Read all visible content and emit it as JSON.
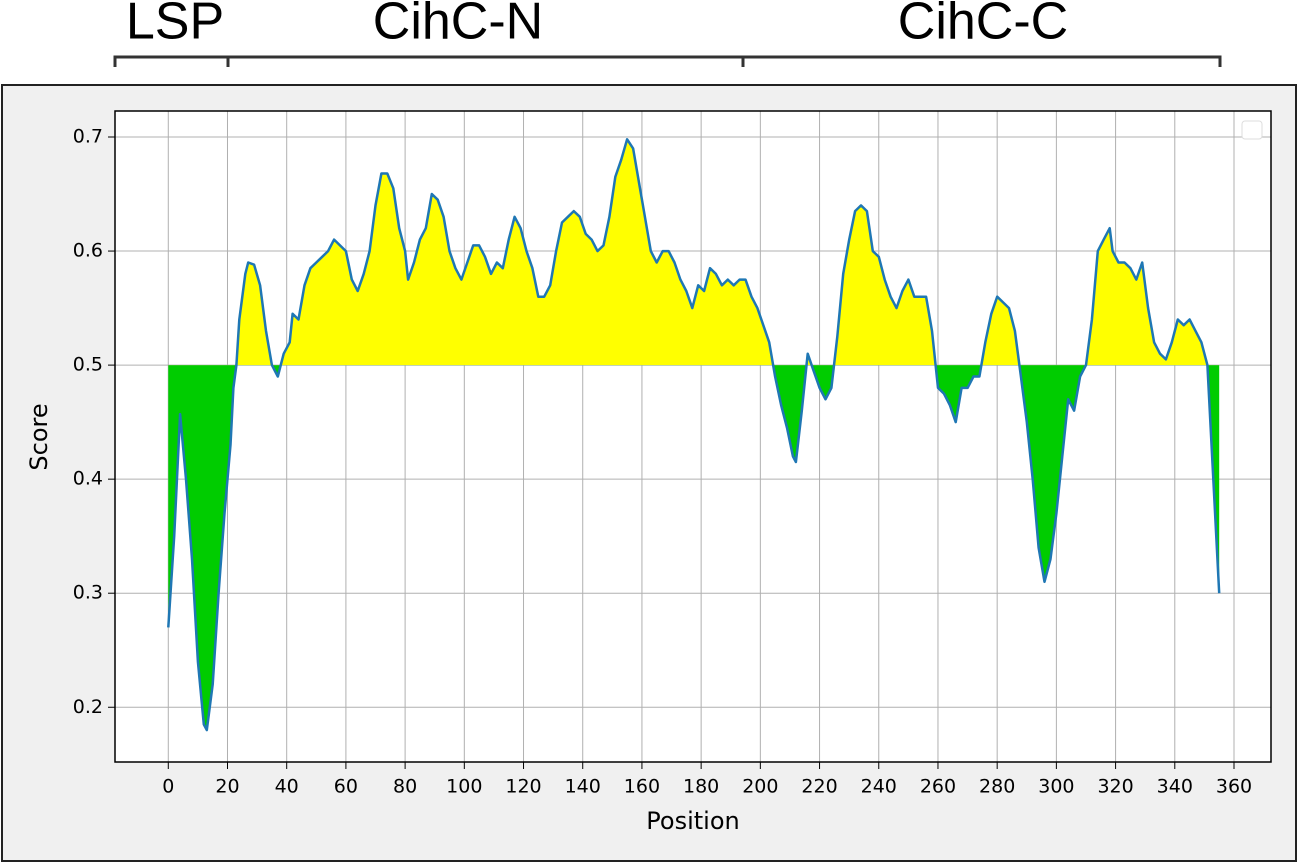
{
  "chart_data": {
    "type": "line",
    "annotations": [
      "LSP",
      "CihC-N",
      "CihC-C"
    ],
    "xlabel": "Position",
    "ylabel": "Score",
    "x": [
      0,
      2,
      4,
      6,
      8,
      10,
      12,
      13,
      15,
      17,
      19,
      21,
      22,
      23,
      24,
      26,
      27,
      29,
      31,
      33,
      35,
      37,
      39,
      41,
      42,
      44,
      46,
      48,
      50,
      52,
      54,
      56,
      58,
      60,
      62,
      64,
      66,
      68,
      70,
      72,
      74,
      76,
      78,
      80,
      81,
      83,
      85,
      87,
      89,
      91,
      93,
      95,
      97,
      99,
      101,
      103,
      105,
      107,
      109,
      111,
      113,
      115,
      117,
      119,
      121,
      123,
      125,
      127,
      129,
      131,
      133,
      135,
      137,
      139,
      141,
      143,
      145,
      147,
      149,
      151,
      153,
      155,
      157,
      159,
      161,
      163,
      165,
      167,
      169,
      171,
      173,
      175,
      177,
      179,
      181,
      183,
      185,
      187,
      189,
      191,
      193,
      195,
      197,
      199,
      201,
      203,
      205,
      207,
      209,
      211,
      212,
      214,
      216,
      218,
      220,
      222,
      224,
      226,
      228,
      230,
      232,
      234,
      236,
      238,
      240,
      242,
      244,
      246,
      248,
      250,
      252,
      254,
      256,
      258,
      260,
      262,
      264,
      266,
      268,
      270,
      272,
      274,
      276,
      278,
      280,
      282,
      284,
      286,
      288,
      290,
      292,
      294,
      296,
      298,
      300,
      302,
      304,
      306,
      308,
      310,
      312,
      314,
      316,
      318,
      319,
      321,
      323,
      325,
      327,
      329,
      331,
      333,
      335,
      337,
      339,
      341,
      343,
      345,
      347,
      349,
      351,
      353,
      355
    ],
    "series": [
      {
        "color": "#1f77b4",
        "values": [
          0.27,
          0.35,
          0.457,
          0.4,
          0.33,
          0.24,
          0.185,
          0.18,
          0.22,
          0.3,
          0.37,
          0.43,
          0.48,
          0.5,
          0.54,
          0.58,
          0.59,
          0.588,
          0.57,
          0.53,
          0.5,
          0.49,
          0.51,
          0.52,
          0.545,
          0.54,
          0.57,
          0.585,
          0.59,
          0.595,
          0.6,
          0.61,
          0.605,
          0.6,
          0.575,
          0.565,
          0.58,
          0.6,
          0.64,
          0.668,
          0.668,
          0.655,
          0.62,
          0.6,
          0.575,
          0.59,
          0.61,
          0.62,
          0.65,
          0.645,
          0.63,
          0.6,
          0.585,
          0.575,
          0.59,
          0.605,
          0.605,
          0.595,
          0.58,
          0.59,
          0.585,
          0.61,
          0.63,
          0.62,
          0.6,
          0.585,
          0.56,
          0.56,
          0.57,
          0.6,
          0.625,
          0.63,
          0.635,
          0.63,
          0.615,
          0.61,
          0.6,
          0.605,
          0.63,
          0.665,
          0.68,
          0.698,
          0.69,
          0.66,
          0.63,
          0.6,
          0.59,
          0.6,
          0.6,
          0.59,
          0.575,
          0.565,
          0.55,
          0.57,
          0.565,
          0.585,
          0.58,
          0.57,
          0.575,
          0.57,
          0.575,
          0.575,
          0.56,
          0.55,
          0.535,
          0.52,
          0.49,
          0.465,
          0.445,
          0.42,
          0.415,
          0.46,
          0.51,
          0.495,
          0.48,
          0.47,
          0.48,
          0.525,
          0.58,
          0.61,
          0.635,
          0.64,
          0.635,
          0.6,
          0.595,
          0.575,
          0.56,
          0.55,
          0.565,
          0.575,
          0.56,
          0.56,
          0.56,
          0.53,
          0.48,
          0.475,
          0.465,
          0.45,
          0.48,
          0.48,
          0.49,
          0.49,
          0.52,
          0.545,
          0.56,
          0.555,
          0.55,
          0.53,
          0.49,
          0.45,
          0.4,
          0.34,
          0.31,
          0.33,
          0.37,
          0.42,
          0.47,
          0.46,
          0.49,
          0.5,
          0.54,
          0.6,
          0.61,
          0.62,
          0.6,
          0.59,
          0.59,
          0.585,
          0.575,
          0.59,
          0.55,
          0.52,
          0.51,
          0.505,
          0.52,
          0.54,
          0.535,
          0.54,
          0.53,
          0.52,
          0.5,
          0.4,
          0.3
        ]
      }
    ],
    "fill_baseline": 0.5,
    "fill_above_color": "#ffff00",
    "fill_below_color": "#00cc00",
    "xlim": [
      -18,
      372.5
    ],
    "ylim": [
      0.152,
      0.7228
    ],
    "xticks": [
      0,
      20,
      40,
      60,
      80,
      100,
      120,
      140,
      160,
      180,
      200,
      220,
      240,
      260,
      280,
      300,
      320,
      340,
      360
    ],
    "yticks": [
      0.2,
      0.3,
      0.4,
      0.5,
      0.6,
      0.7
    ],
    "grid": true
  }
}
